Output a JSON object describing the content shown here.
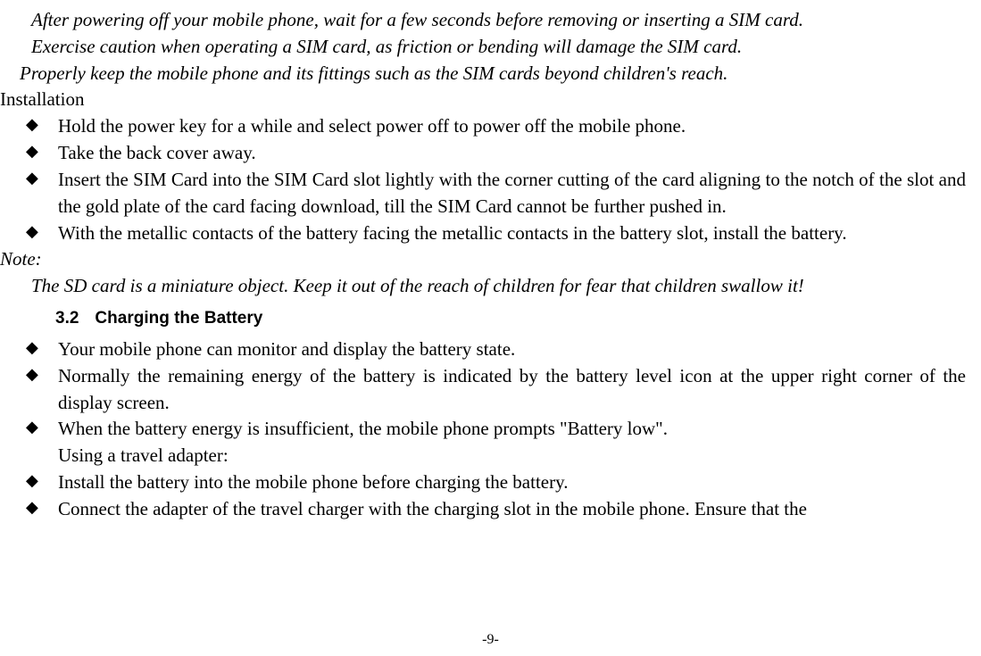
{
  "intro": {
    "line1": "After powering off your mobile phone, wait for a few seconds before removing or inserting a SIM card.",
    "line2": "Exercise caution when operating a SIM card, as friction or bending will damage the SIM card.",
    "line3": "Properly keep the mobile phone and its fittings such as the SIM cards beyond children's reach."
  },
  "installation": {
    "heading": "Installation",
    "items": [
      "Hold the power key for a while and select power off to power off the mobile phone.",
      "Take the back cover away.",
      "Insert the SIM Card into the SIM Card slot lightly with the corner cutting of the card aligning to the notch of the slot and the gold plate of the card facing download, till the SIM Card cannot be further pushed in.",
      "With the metallic contacts of the battery facing the metallic contacts in the battery slot, install the battery."
    ]
  },
  "note": {
    "label": "Note:",
    "text": "The SD card is a miniature object. Keep it out of the reach of children for fear that children swallow it!"
  },
  "section": {
    "number": "3.2",
    "title": "Charging the Battery",
    "items_a": [
      "Your mobile phone can monitor and display the battery state.",
      "Normally the remaining energy of the battery is indicated by the battery level icon at the upper right corner of the display screen.",
      "When the battery energy is insufficient, the mobile phone prompts \"Battery low\"."
    ],
    "subline": "Using a travel adapter:",
    "items_b": [
      "Install the battery into the mobile phone before charging the battery.",
      "Connect the adapter of the travel charger with the charging slot in the mobile phone. Ensure that the"
    ]
  },
  "page_number": "-9-",
  "styling": {
    "font_family_body": "Times New Roman",
    "font_family_heading": "Arial",
    "font_size_body": 21,
    "font_size_heading": 19,
    "font_size_pagenum": 16,
    "text_color": "#000000",
    "background_color": "#ffffff",
    "bullet_glyph": "◆"
  }
}
